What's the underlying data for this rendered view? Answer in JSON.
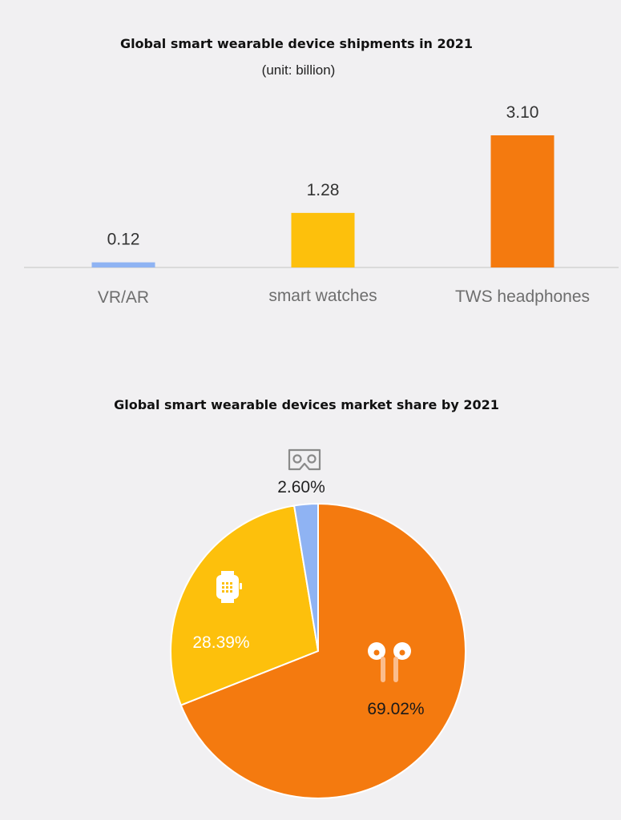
{
  "chart_data": [
    {
      "type": "bar",
      "title": "Global smart wearable device shipments in 2021",
      "subtitle": "(unit: billion)",
      "categories": [
        "VR/AR",
        "smart watches",
        "TWS headphones"
      ],
      "values": [
        0.12,
        1.28,
        3.1
      ],
      "value_labels": [
        "0.12",
        "1.28",
        "3.10"
      ],
      "colors": [
        "#8fb3f3",
        "#fdc00c",
        "#f47a0f"
      ],
      "ylim": [
        0,
        3.1
      ],
      "grid": false,
      "legend": "none"
    },
    {
      "type": "pie",
      "title": "Global smart wearable devices market share by 2021",
      "slices": [
        {
          "category": "VR/AR",
          "value": 2.6,
          "label": "2.60%",
          "color": "#8fb3f3",
          "icon": "vr-headset-icon",
          "label_color": "#222222"
        },
        {
          "category": "smart watches",
          "value": 28.39,
          "label": "28.39%",
          "color": "#fdc00c",
          "icon": "smartwatch-icon",
          "label_color": "#ffffff"
        },
        {
          "category": "TWS headphones",
          "value": 69.02,
          "label": "69.02%",
          "color": "#f47a0f",
          "icon": "earbuds-icon",
          "label_color": "#1a1a1a"
        }
      ],
      "start": "12 o'clock, clockwise",
      "legend": "none"
    }
  ]
}
